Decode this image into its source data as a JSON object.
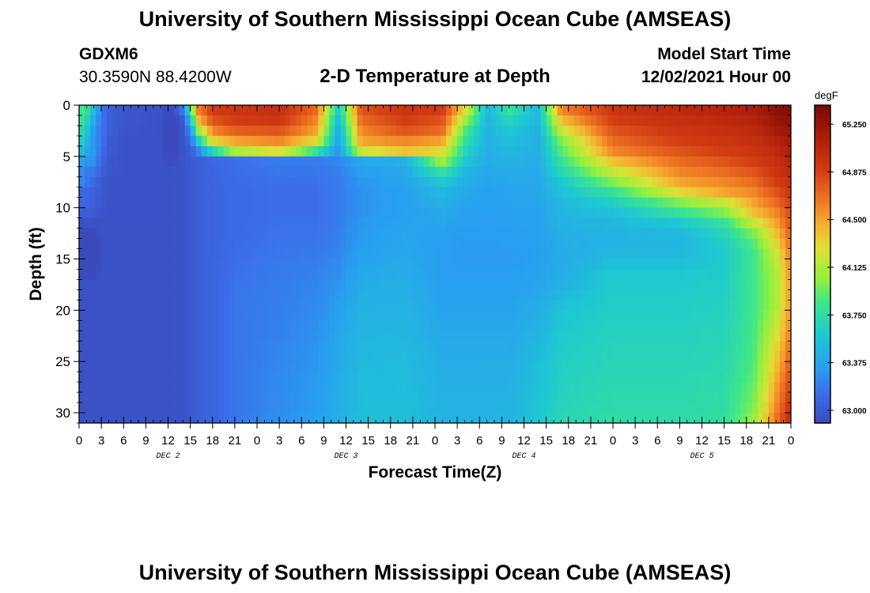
{
  "header": {
    "title": "University of Southern Mississippi Ocean Cube (AMSEAS)",
    "station": "GDXM6",
    "coords": "30.3590N  88.4200W",
    "plot_title": "2-D Temperature at Depth",
    "model_start_label": "Model Start Time",
    "model_start_value": "12/02/2021 Hour 00"
  },
  "footer": {
    "title": "University of Southern Mississippi Ocean Cube (AMSEAS)"
  },
  "chart_data": {
    "type": "heatmap",
    "title": "2-D Temperature at Depth",
    "xlabel": "Forecast Time(Z)",
    "ylabel": "Depth (ft)",
    "x_tick_labels": [
      "0",
      "3",
      "6",
      "9",
      "12",
      "15",
      "18",
      "21",
      "0",
      "3",
      "6",
      "9",
      "12",
      "15",
      "18",
      "21",
      "0",
      "3",
      "6",
      "9",
      "12",
      "15",
      "18",
      "21",
      "0",
      "3",
      "6",
      "9",
      "12",
      "15",
      "18",
      "21",
      "0"
    ],
    "x_range_hours": [
      0,
      96
    ],
    "day_labels": [
      {
        "label": "DEC 2",
        "hour": 12
      },
      {
        "label": "DEC 3",
        "hour": 36
      },
      {
        "label": "DEC 4",
        "hour": 60
      },
      {
        "label": "DEC 5",
        "hour": 84
      }
    ],
    "y_ticks": [
      0,
      5,
      10,
      15,
      20,
      25,
      30
    ],
    "ylim": [
      0,
      31
    ],
    "y_inverted": true,
    "colorbar": {
      "unit": "degF",
      "ticks": [
        "65.250",
        "64.875",
        "64.500",
        "64.125",
        "63.750",
        "63.375",
        "63.000"
      ],
      "range": [
        62.9,
        65.4
      ]
    },
    "grid": false,
    "columns": [
      {
        "hour": 0,
        "v": [
          63.9,
          63.9,
          63.8,
          63.7,
          63.6,
          63.4,
          63.3,
          63.3,
          63.1,
          63.1,
          63.05,
          62.95,
          62.9,
          62.8,
          62.8,
          62.8,
          62.9,
          62.95,
          62.95,
          62.95,
          62.95,
          62.95,
          62.95,
          62.95,
          62.95,
          62.95,
          62.95,
          62.95,
          62.95,
          62.95,
          62.95,
          62.95
        ]
      },
      {
        "hour": 1,
        "v": [
          63.8,
          63.7,
          63.6,
          63.5,
          63.4,
          63.3,
          63.2,
          63.2,
          63.1,
          63.1,
          63.05,
          62.95,
          62.9,
          62.8,
          62.8,
          62.8,
          62.9,
          62.95,
          62.95,
          62.95,
          62.95,
          62.95,
          62.95,
          62.95,
          62.95,
          62.95,
          62.95,
          62.95,
          62.95,
          62.95,
          62.95,
          62.95
        ]
      },
      {
        "hour": 2,
        "v": [
          63.5,
          63.4,
          63.3,
          63.3,
          63.3,
          63.3,
          63.2,
          63.1,
          63.05,
          63.05,
          63.0,
          62.95,
          62.9,
          62.8,
          62.8,
          62.8,
          62.9,
          62.95,
          62.95,
          62.95,
          62.95,
          62.95,
          62.95,
          62.95,
          62.95,
          62.95,
          62.95,
          62.95,
          62.95,
          62.95,
          62.95,
          62.95
        ]
      },
      {
        "hour": 3,
        "v": [
          63.2,
          63.2,
          63.2,
          63.2,
          63.15,
          63.1,
          63.05,
          63.0,
          63.0,
          62.98,
          62.97,
          62.95,
          62.95,
          62.95,
          62.95,
          62.95,
          62.95,
          62.95,
          62.95,
          62.95,
          62.95,
          62.95,
          62.95,
          62.95,
          62.95,
          62.95,
          62.95,
          62.95,
          62.95,
          62.95,
          62.95,
          62.95
        ]
      },
      {
        "hour": 4,
        "v": [
          63.05,
          63.05,
          63.05,
          63.0,
          63.0,
          62.98,
          62.97,
          62.96,
          62.96,
          62.96,
          62.96,
          62.95,
          62.95,
          62.95,
          62.95,
          62.95,
          62.95,
          62.95,
          62.95,
          62.95,
          62.95,
          62.95,
          62.95,
          62.95,
          62.95,
          62.95,
          62.95,
          62.95,
          62.95,
          62.95,
          62.95,
          62.95
        ]
      },
      {
        "hour": 6,
        "v": [
          62.98,
          62.98,
          62.97,
          62.96,
          62.96,
          62.96,
          62.96,
          62.96,
          62.96,
          62.96,
          62.96,
          62.95,
          62.95,
          62.95,
          62.95,
          62.95,
          62.95,
          62.95,
          62.95,
          62.95,
          62.95,
          62.95,
          62.95,
          62.95,
          62.95,
          62.95,
          62.95,
          62.95,
          62.95,
          62.95,
          62.95,
          62.95
        ]
      },
      {
        "hour": 11,
        "v": [
          62.95,
          62.95,
          62.95,
          62.95,
          62.95,
          62.95,
          62.95,
          62.95,
          62.95,
          62.95,
          62.95,
          62.95,
          62.95,
          62.95,
          62.95,
          62.95,
          62.95,
          62.95,
          62.95,
          62.95,
          62.95,
          62.95,
          62.95,
          62.95,
          62.95,
          62.95,
          62.95,
          62.95,
          62.95,
          62.95,
          62.95,
          62.95
        ]
      },
      {
        "hour": 12.5,
        "v": [
          62.85,
          62.8,
          62.75,
          62.75,
          62.8,
          62.9,
          62.95,
          62.95,
          62.95,
          62.95,
          62.95,
          62.95,
          62.95,
          62.95,
          62.95,
          62.95,
          62.95,
          62.95,
          62.95,
          62.95,
          62.95,
          62.95,
          62.95,
          62.95,
          62.95,
          62.95,
          62.95,
          62.95,
          62.95,
          62.95,
          62.95,
          62.95
        ]
      },
      {
        "hour": 14,
        "v": [
          63.2,
          63.0,
          62.97,
          62.96,
          62.96,
          62.96,
          62.96,
          62.96,
          62.96,
          62.96,
          62.96,
          62.96,
          62.96,
          62.96,
          62.96,
          62.96,
          62.96,
          62.96,
          62.96,
          62.96,
          62.96,
          62.96,
          62.96,
          62.96,
          62.96,
          62.96,
          62.96,
          62.96,
          62.96,
          62.96,
          62.96,
          62.96
        ]
      },
      {
        "hour": 15,
        "v": [
          63.8,
          63.5,
          63.3,
          63.1,
          63.02,
          63.0,
          63.0,
          63.0,
          63.0,
          63.0,
          63.0,
          63.0,
          63.0,
          63.0,
          63.0,
          63.0,
          63.0,
          63.0,
          63.0,
          63.0,
          63.0,
          63.0,
          63.0,
          63.0,
          63.0,
          63.0,
          63.0,
          63.0,
          63.0,
          63.0,
          63.0,
          63.0
        ]
      },
      {
        "hour": 16,
        "v": [
          64.6,
          64.4,
          64.0,
          63.6,
          63.2,
          63.05,
          63.04,
          63.04,
          63.04,
          63.04,
          63.04,
          63.04,
          63.04,
          63.04,
          63.04,
          63.04,
          63.04,
          63.04,
          63.04,
          63.04,
          63.04,
          63.04,
          63.04,
          63.04,
          63.04,
          63.04,
          63.04,
          63.04,
          63.04,
          63.04,
          63.04,
          63.04
        ]
      },
      {
        "hour": 18,
        "v": [
          64.9,
          64.8,
          64.6,
          64.3,
          63.7,
          63.1,
          63.08,
          63.08,
          63.08,
          63.08,
          63.08,
          63.08,
          63.08,
          63.08,
          63.08,
          63.08,
          63.08,
          63.08,
          63.08,
          63.08,
          63.08,
          63.08,
          63.08,
          63.08,
          63.08,
          63.08,
          63.08,
          63.08,
          63.08,
          63.08,
          63.08,
          63.08
        ]
      },
      {
        "hour": 21,
        "v": [
          64.95,
          64.9,
          64.75,
          64.5,
          64.1,
          63.15,
          63.14,
          63.13,
          63.12,
          63.12,
          63.12,
          63.12,
          63.12,
          63.13,
          63.14,
          63.15,
          63.16,
          63.17,
          63.18,
          63.18,
          63.18,
          63.18,
          63.18,
          63.18,
          63.18,
          63.18,
          63.18,
          63.18,
          63.18,
          63.18,
          63.18,
          63.18
        ]
      },
      {
        "hour": 27,
        "v": [
          65.0,
          64.95,
          64.8,
          64.6,
          64.3,
          63.2,
          63.18,
          63.16,
          63.15,
          63.15,
          63.15,
          63.16,
          63.17,
          63.18,
          63.19,
          63.2,
          63.2,
          63.21,
          63.21,
          63.22,
          63.22,
          63.23,
          63.23,
          63.24,
          63.24,
          63.25,
          63.26,
          63.26,
          63.27,
          63.27,
          63.28,
          63.28
        ]
      },
      {
        "hour": 32,
        "v": [
          64.7,
          64.6,
          64.5,
          64.3,
          63.8,
          63.2,
          63.18,
          63.16,
          63.15,
          63.15,
          63.15,
          63.16,
          63.17,
          63.18,
          63.2,
          63.22,
          63.23,
          63.24,
          63.25,
          63.26,
          63.27,
          63.28,
          63.29,
          63.3,
          63.31,
          63.32,
          63.33,
          63.33,
          63.34,
          63.34,
          63.35,
          63.35
        ]
      },
      {
        "hour": 35,
        "v": [
          63.6,
          63.5,
          63.4,
          63.35,
          63.3,
          63.25,
          63.22,
          63.2,
          63.2,
          63.2,
          63.2,
          63.21,
          63.22,
          63.23,
          63.25,
          63.27,
          63.29,
          63.31,
          63.33,
          63.35,
          63.37,
          63.38,
          63.39,
          63.4,
          63.4,
          63.41,
          63.42,
          63.42,
          63.43,
          63.43,
          63.44,
          63.44
        ]
      },
      {
        "hour": 38,
        "v": [
          64.8,
          64.7,
          64.6,
          64.5,
          64.2,
          63.4,
          63.35,
          63.32,
          63.3,
          63.3,
          63.3,
          63.32,
          63.33,
          63.34,
          63.36,
          63.38,
          63.4,
          63.42,
          63.44,
          63.45,
          63.46,
          63.47,
          63.48,
          63.49,
          63.5,
          63.51,
          63.52,
          63.52,
          63.53,
          63.53,
          63.54,
          63.54
        ]
      },
      {
        "hour": 44,
        "v": [
          64.95,
          64.9,
          64.8,
          64.6,
          64.4,
          63.45,
          63.4,
          63.38,
          63.36,
          63.36,
          63.36,
          63.37,
          63.38,
          63.39,
          63.4,
          63.41,
          63.42,
          63.44,
          63.45,
          63.46,
          63.47,
          63.48,
          63.49,
          63.5,
          63.51,
          63.52,
          63.52,
          63.53,
          63.53,
          63.54,
          63.54,
          63.55
        ]
      },
      {
        "hour": 49,
        "v": [
          64.9,
          64.8,
          64.7,
          64.5,
          64.3,
          64.1,
          63.8,
          63.6,
          63.5,
          63.45,
          63.4,
          63.38,
          63.36,
          63.35,
          63.34,
          63.34,
          63.34,
          63.35,
          63.36,
          63.37,
          63.38,
          63.39,
          63.4,
          63.41,
          63.42,
          63.43,
          63.44,
          63.45,
          63.46,
          63.46,
          63.47,
          63.47
        ]
      },
      {
        "hour": 52,
        "v": [
          64.3,
          64.1,
          63.9,
          63.8,
          63.7,
          63.6,
          63.5,
          63.45,
          63.4,
          63.38,
          63.36,
          63.35,
          63.34,
          63.33,
          63.33,
          63.33,
          63.34,
          63.35,
          63.36,
          63.37,
          63.38,
          63.39,
          63.4,
          63.41,
          63.42,
          63.43,
          63.44,
          63.45,
          63.46,
          63.46,
          63.47,
          63.47
        ]
      },
      {
        "hour": 55,
        "v": [
          63.5,
          63.48,
          63.46,
          63.45,
          63.44,
          63.42,
          63.4,
          63.38,
          63.37,
          63.36,
          63.35,
          63.34,
          63.34,
          63.33,
          63.33,
          63.33,
          63.34,
          63.35,
          63.36,
          63.37,
          63.38,
          63.39,
          63.4,
          63.41,
          63.42,
          63.43,
          63.44,
          63.45,
          63.46,
          63.46,
          63.47,
          63.47
        ]
      },
      {
        "hour": 58,
        "v": [
          63.8,
          63.7,
          63.6,
          63.55,
          63.5,
          63.45,
          63.42,
          63.4,
          63.38,
          63.37,
          63.36,
          63.35,
          63.34,
          63.34,
          63.33,
          63.33,
          63.34,
          63.35,
          63.36,
          63.37,
          63.38,
          63.39,
          63.4,
          63.41,
          63.42,
          63.43,
          63.44,
          63.45,
          63.46,
          63.47,
          63.48,
          63.48
        ]
      },
      {
        "hour": 62,
        "v": [
          63.5,
          63.48,
          63.46,
          63.45,
          63.44,
          63.43,
          63.42,
          63.4,
          63.39,
          63.38,
          63.37,
          63.36,
          63.36,
          63.35,
          63.35,
          63.36,
          63.37,
          63.38,
          63.4,
          63.42,
          63.44,
          63.46,
          63.48,
          63.5,
          63.52,
          63.54,
          63.55,
          63.56,
          63.57,
          63.58,
          63.59,
          63.6
        ]
      },
      {
        "hour": 65,
        "v": [
          64.6,
          64.4,
          64.2,
          64.0,
          63.9,
          63.8,
          63.7,
          63.6,
          63.55,
          63.5,
          63.48,
          63.46,
          63.44,
          63.43,
          63.42,
          63.42,
          63.43,
          63.45,
          63.5,
          63.55,
          63.58,
          63.6,
          63.62,
          63.63,
          63.64,
          63.65,
          63.66,
          63.67,
          63.68,
          63.69,
          63.7,
          63.7
        ]
      },
      {
        "hour": 72,
        "v": [
          64.95,
          64.9,
          64.8,
          64.7,
          64.6,
          64.4,
          64.2,
          64.0,
          63.8,
          63.65,
          63.55,
          63.5,
          63.48,
          63.47,
          63.5,
          63.55,
          63.6,
          63.62,
          63.63,
          63.64,
          63.65,
          63.66,
          63.67,
          63.68,
          63.69,
          63.7,
          63.71,
          63.72,
          63.73,
          63.74,
          63.75,
          63.75
        ]
      },
      {
        "hour": 81,
        "v": [
          65.05,
          65.0,
          64.95,
          64.9,
          64.8,
          64.7,
          64.6,
          64.5,
          64.3,
          64.0,
          63.8,
          63.6,
          63.5,
          63.48,
          63.5,
          63.55,
          63.6,
          63.62,
          63.63,
          63.64,
          63.65,
          63.66,
          63.67,
          63.68,
          63.69,
          63.7,
          63.71,
          63.72,
          63.73,
          63.74,
          63.75,
          63.75
        ]
      },
      {
        "hour": 87,
        "v": [
          65.1,
          65.05,
          65.0,
          64.95,
          64.9,
          64.8,
          64.7,
          64.6,
          64.5,
          64.2,
          64.0,
          63.8,
          63.7,
          63.65,
          63.62,
          63.62,
          63.63,
          63.64,
          63.65,
          63.66,
          63.67,
          63.68,
          63.69,
          63.7,
          63.71,
          63.72,
          63.73,
          63.74,
          63.75,
          63.76,
          63.77,
          63.78
        ]
      },
      {
        "hour": 91,
        "v": [
          65.15,
          65.1,
          65.05,
          65.0,
          64.95,
          64.9,
          64.8,
          64.7,
          64.6,
          64.5,
          64.4,
          64.2,
          64.0,
          63.9,
          63.85,
          63.85,
          63.85,
          63.85,
          63.85,
          63.85,
          63.85,
          63.86,
          63.87,
          63.88,
          63.89,
          63.9,
          63.92,
          63.95,
          63.98,
          64.0,
          64.05,
          64.1
        ]
      },
      {
        "hour": 94,
        "v": [
          65.3,
          65.25,
          65.2,
          65.1,
          65.05,
          65.0,
          64.95,
          64.9,
          64.8,
          64.7,
          64.6,
          64.5,
          64.4,
          64.3,
          64.2,
          64.15,
          64.12,
          64.1,
          64.1,
          64.1,
          64.15,
          64.2,
          64.25,
          64.3,
          64.35,
          64.4,
          64.45,
          64.5,
          64.55,
          64.6,
          64.65,
          64.7
        ]
      },
      {
        "hour": 96,
        "v": [
          65.35,
          65.3,
          65.25,
          65.2,
          65.15,
          65.1,
          65.05,
          65.0,
          64.95,
          64.9,
          64.85,
          64.8,
          64.75,
          64.7,
          64.65,
          64.6,
          64.58,
          64.55,
          64.55,
          64.55,
          64.58,
          64.6,
          64.65,
          64.7,
          64.75,
          64.8,
          64.85,
          64.9,
          64.95,
          65.0,
          65.05,
          65.1
        ]
      }
    ]
  }
}
